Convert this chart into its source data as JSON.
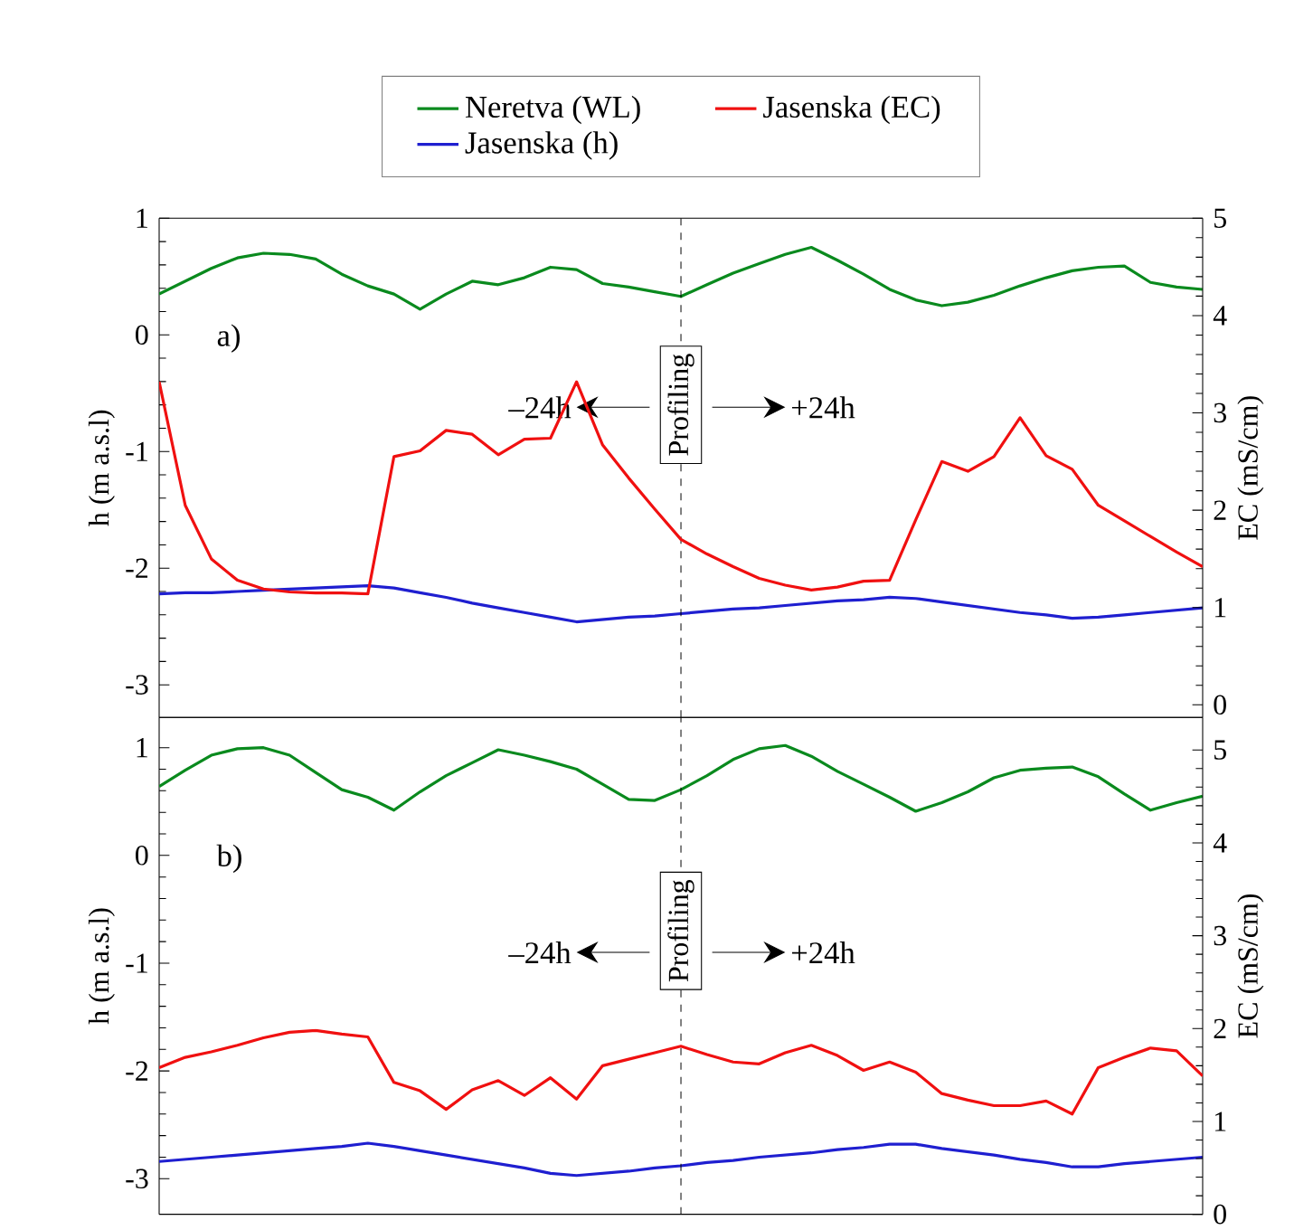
{
  "chart_data": [
    {
      "type": "line",
      "categories": [
        null,
        null,
        null,
        null,
        null,
        null,
        null,
        null,
        null,
        null,
        null,
        null,
        null,
        null,
        null,
        null,
        null,
        null,
        null,
        null,
        null,
        null,
        null,
        null,
        null,
        null,
        null,
        null,
        null,
        null,
        null,
        null,
        null,
        null,
        null,
        null,
        null,
        null,
        null,
        null,
        null
      ],
      "ylim": [
        -3.28,
        1
      ],
      "yticks": [
        -3,
        -2,
        -1,
        0,
        1
      ],
      "y2lim": [
        -0.13,
        5
      ],
      "y2ticks": [
        0,
        1,
        2,
        3,
        4,
        5
      ],
      "ylabel": "h (m a.s.l)",
      "y2label": "EC (mS/cm)",
      "tick_labels": "y",
      "legend": "top",
      "annotations": [
        "a)",
        "Profiling",
        "–24h",
        "+24h"
      ],
      "series": [
        {
          "name": "Neretva (WL)",
          "color": "#0a8a1e",
          "values": [
            0.35,
            0.46,
            0.57,
            0.66,
            0.7,
            0.69,
            0.65,
            0.52,
            0.42,
            0.35,
            0.22,
            0.35,
            0.46,
            0.43,
            0.49,
            0.58,
            0.56,
            0.44,
            0.41,
            0.37,
            0.33,
            0.43,
            0.53,
            0.61,
            0.69,
            0.75,
            0.64,
            0.52,
            0.39,
            0.3,
            0.25,
            0.28,
            0.34,
            0.42,
            0.49,
            0.55,
            0.58,
            0.59,
            0.45,
            0.41,
            0.39
          ]
        },
        {
          "name": "Jasenska (EC)",
          "color": "#f01010",
          "axis": "y2",
          "values": [
            3.32,
            2.05,
            1.5,
            1.28,
            1.19,
            1.16,
            1.15,
            1.15,
            1.14,
            2.55,
            2.61,
            2.82,
            2.78,
            2.57,
            2.73,
            2.74,
            3.32,
            2.67,
            2.33,
            2.01,
            1.7,
            1.55,
            1.42,
            1.3,
            1.23,
            1.18,
            1.21,
            1.27,
            1.28,
            1.9,
            2.5,
            2.4,
            2.55,
            2.95,
            2.56,
            2.42,
            2.05,
            1.89,
            1.73,
            1.57,
            1.42
          ]
        },
        {
          "name": "Jasenska (h)",
          "color": "#1f1fd0",
          "values": [
            -2.22,
            -2.21,
            -2.21,
            -2.2,
            -2.19,
            -2.18,
            -2.17,
            -2.16,
            -2.15,
            -2.17,
            -2.21,
            -2.25,
            -2.3,
            -2.34,
            -2.38,
            -2.42,
            -2.46,
            -2.44,
            -2.42,
            -2.41,
            -2.39,
            -2.37,
            -2.35,
            -2.34,
            -2.32,
            -2.3,
            -2.28,
            -2.27,
            -2.25,
            -2.26,
            -2.29,
            -2.32,
            -2.35,
            -2.38,
            -2.4,
            -2.43,
            -2.42,
            -2.4,
            -2.38,
            -2.36,
            -2.34
          ]
        }
      ]
    },
    {
      "type": "line",
      "categories": [
        null,
        null,
        null,
        null,
        null,
        null,
        null,
        null,
        null,
        null,
        null,
        null,
        null,
        null,
        null,
        null,
        null,
        null,
        null,
        null,
        null,
        null,
        null,
        null,
        null,
        null,
        null,
        null,
        null,
        null,
        null,
        null,
        null,
        null,
        null,
        null,
        null,
        null,
        null,
        null,
        null
      ],
      "ylim": [
        -3.33,
        1.28
      ],
      "yticks": [
        -3,
        -2,
        -1,
        0,
        1
      ],
      "y2lim": [
        0,
        5.35
      ],
      "y2ticks": [
        0,
        1,
        2,
        3,
        4,
        5
      ],
      "ylabel": "h (m a.s.l)",
      "y2label": "EC (mS/cm)",
      "tick_labels": "y",
      "annotations": [
        "b)",
        "Profiling",
        "–24h",
        "+24h"
      ],
      "series": [
        {
          "color": "#0a8a1e",
          "values": [
            0.64,
            0.79,
            0.93,
            0.99,
            1.0,
            0.93,
            0.77,
            0.61,
            0.54,
            0.42,
            0.59,
            0.74,
            0.86,
            0.98,
            0.93,
            0.87,
            0.8,
            0.66,
            0.52,
            0.51,
            0.61,
            0.74,
            0.89,
            0.99,
            1.02,
            0.92,
            0.78,
            0.66,
            0.54,
            0.41,
            0.49,
            0.59,
            0.72,
            0.79,
            0.81,
            0.82,
            0.73,
            0.57,
            0.42,
            0.49,
            0.55
          ]
        },
        {
          "color": "#f01010",
          "axis": "y2",
          "values": [
            1.58,
            1.69,
            1.75,
            1.82,
            1.9,
            1.96,
            1.98,
            1.94,
            1.91,
            1.42,
            1.33,
            1.13,
            1.34,
            1.44,
            1.28,
            1.47,
            1.24,
            1.6,
            1.67,
            1.74,
            1.81,
            1.72,
            1.64,
            1.62,
            1.74,
            1.82,
            1.71,
            1.55,
            1.64,
            1.53,
            1.3,
            1.23,
            1.17,
            1.17,
            1.22,
            1.08,
            1.58,
            1.69,
            1.79,
            1.76,
            1.49
          ]
        },
        {
          "color": "#1f1fd0",
          "values": [
            -2.84,
            -2.82,
            -2.8,
            -2.78,
            -2.76,
            -2.74,
            -2.72,
            -2.7,
            -2.67,
            -2.7,
            -2.74,
            -2.78,
            -2.82,
            -2.86,
            -2.9,
            -2.95,
            -2.97,
            -2.95,
            -2.93,
            -2.9,
            -2.88,
            -2.85,
            -2.83,
            -2.8,
            -2.78,
            -2.76,
            -2.73,
            -2.71,
            -2.68,
            -2.68,
            -2.72,
            -2.75,
            -2.78,
            -2.82,
            -2.85,
            -2.89,
            -2.89,
            -2.86,
            -2.84,
            -2.82,
            -2.8
          ]
        }
      ]
    }
  ]
}
